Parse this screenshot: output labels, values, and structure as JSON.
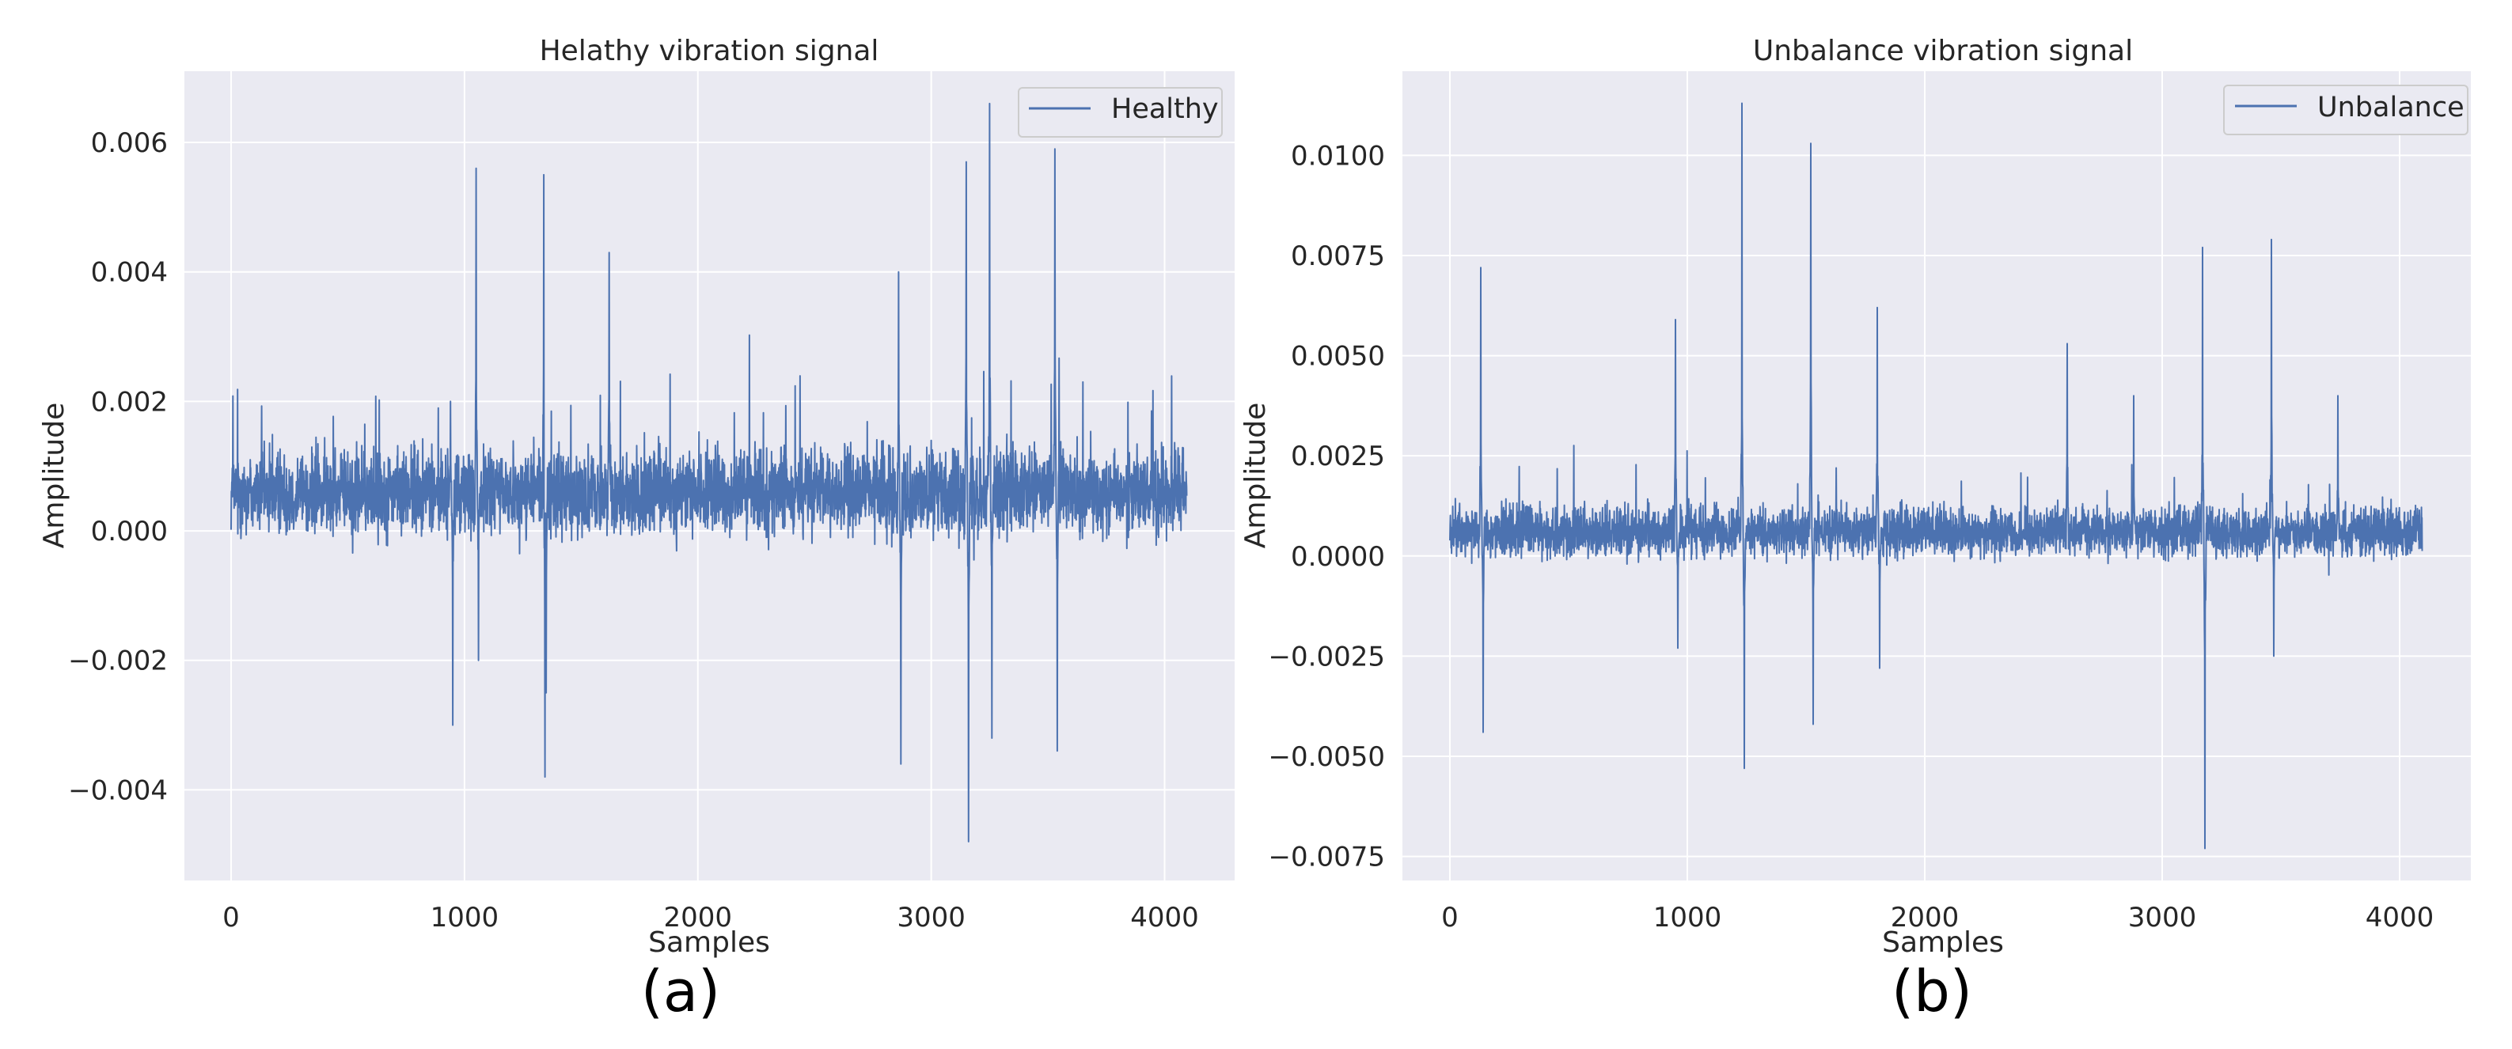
{
  "figure": {
    "panels": [
      {
        "label": "(a)"
      },
      {
        "label": "(b)"
      }
    ]
  },
  "chart_data": [
    {
      "type": "line",
      "title": "Helathy vibration signal",
      "xlabel": "Samples",
      "ylabel": "Amplitude",
      "xlim": [
        -200,
        4300
      ],
      "ylim": [
        -0.0054,
        0.0071
      ],
      "xticks": [
        0,
        1000,
        2000,
        3000,
        4000
      ],
      "xtick_labels": [
        "0",
        "1000",
        "2000",
        "3000",
        "4000"
      ],
      "yticks": [
        -0.004,
        -0.002,
        0.0,
        0.002,
        0.004,
        0.006
      ],
      "ytick_labels": [
        "−0.004",
        "−0.002",
        "0.000",
        "0.002",
        "0.004",
        "0.006"
      ],
      "grid": true,
      "legend_position": "top-right",
      "series": [
        {
          "name": "Healthy",
          "color": "#4c72b0",
          "x_range": [
            0,
            4095
          ],
          "num_samples": 4096,
          "baseline": 0.0006,
          "noise_band": [
            -0.0003,
            0.0016
          ],
          "spikes": [
            [
              940,
              0.002
            ],
            [
              950,
              -0.003
            ],
            [
              1050,
              0.0056
            ],
            [
              1060,
              -0.002
            ],
            [
              1340,
              0.0055
            ],
            [
              1345,
              -0.0038
            ],
            [
              1350,
              -0.0025
            ],
            [
              1620,
              0.0043
            ],
            [
              2860,
              0.004
            ],
            [
              2870,
              -0.0036
            ],
            [
              3150,
              0.0057
            ],
            [
              3160,
              -0.0048
            ],
            [
              3250,
              0.0066
            ],
            [
              3260,
              -0.0032
            ],
            [
              3530,
              0.0059
            ],
            [
              3540,
              -0.0034
            ]
          ]
        }
      ]
    },
    {
      "type": "line",
      "title": "Unbalance vibration signal",
      "xlabel": "Samples",
      "ylabel": "Amplitude",
      "xlim": [
        -200,
        4300
      ],
      "ylim": [
        -0.0081,
        0.0121
      ],
      "xticks": [
        0,
        1000,
        2000,
        3000,
        4000
      ],
      "xtick_labels": [
        "0",
        "1000",
        "2000",
        "3000",
        "4000"
      ],
      "yticks": [
        -0.0075,
        -0.005,
        -0.0025,
        0.0,
        0.0025,
        0.005,
        0.0075,
        0.01
      ],
      "ytick_labels": [
        "−0.0075",
        "−0.0050",
        "−0.0025",
        "0.0000",
        "0.0025",
        "0.0050",
        "0.0075",
        "0.0100"
      ],
      "grid": true,
      "legend_position": "top-right",
      "series": [
        {
          "name": "Unbalance",
          "color": "#4c72b0",
          "x_range": [
            0,
            4095
          ],
          "num_samples": 4096,
          "baseline": 0.0006,
          "noise_band": [
            -0.0003,
            0.0015
          ],
          "spikes": [
            [
              130,
              0.0072
            ],
            [
              140,
              -0.0044
            ],
            [
              950,
              0.0059
            ],
            [
              960,
              -0.0023
            ],
            [
              1230,
              0.0113
            ],
            [
              1240,
              -0.0053
            ],
            [
              1520,
              0.0103
            ],
            [
              1530,
              -0.0042
            ],
            [
              1800,
              0.0062
            ],
            [
              1810,
              -0.0028
            ],
            [
              2600,
              0.0053
            ],
            [
              2880,
              0.004
            ],
            [
              3170,
              0.0077
            ],
            [
              3180,
              -0.0073
            ],
            [
              3460,
              0.0079
            ],
            [
              3470,
              -0.0025
            ],
            [
              3740,
              0.004
            ]
          ]
        }
      ]
    }
  ]
}
